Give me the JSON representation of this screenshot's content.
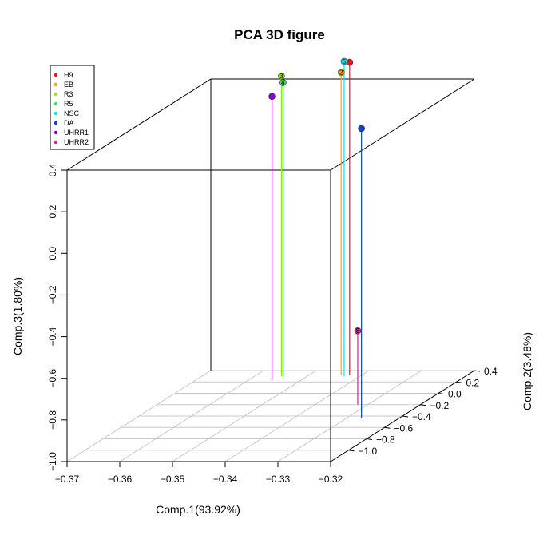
{
  "chart_data": {
    "type": "scatter",
    "title": "PCA 3D figure",
    "xlabel": "Comp.1(93.92%)",
    "ylabel": "Comp.2(3.48%)",
    "zlabel": "Comp.3(1.80%)",
    "xlim": [
      -0.37,
      -0.32
    ],
    "ylim": [
      -1.2,
      0.4
    ],
    "zlim": [
      -1.0,
      0.4
    ],
    "x_ticks": [
      "-0.37",
      "-0.36",
      "-0.35",
      "-0.34",
      "-0.33",
      "-0.32"
    ],
    "y_ticks": [
      "-1.0",
      "-0.8",
      "-0.6",
      "-0.4",
      "-0.2",
      "0.0",
      "0.2",
      "0.4"
    ],
    "z_ticks": [
      "-1.0",
      "-0.8",
      "-0.6",
      "-0.4",
      "-0.2",
      "0.0",
      "0.2",
      "0.4"
    ],
    "box": true,
    "grid": "floor",
    "legend_position": "top-left",
    "series": [
      {
        "name": "H9",
        "color": "#e31a1c",
        "label": "",
        "x": -0.3423,
        "y": 0.32,
        "z": 0.502
      },
      {
        "name": "EB",
        "color": "#ffa500",
        "label": "2",
        "x": -0.3439,
        "y": 0.32,
        "z": 0.454
      },
      {
        "name": "R3",
        "color": "#90ee00",
        "label": "3",
        "x": -0.3549,
        "y": 0.3,
        "z": 0.442
      },
      {
        "name": "R5",
        "color": "#30e060",
        "label": "4",
        "x": -0.3546,
        "y": 0.3,
        "z": 0.41
      },
      {
        "name": "NSC",
        "color": "#00e5ee",
        "label": "5",
        "x": -0.343,
        "y": 0.3,
        "z": 0.512
      },
      {
        "name": "DA",
        "color": "#1040d0",
        "label": "",
        "x": -0.3271,
        "y": -0.44,
        "z": 0.392
      },
      {
        "name": "UHRR1",
        "color": "#8a00d4",
        "label": "",
        "x": -0.3555,
        "y": 0.23,
        "z": 0.363
      },
      {
        "name": "UHRR2",
        "color": "#e01aa0",
        "label": "8",
        "x": -0.3319,
        "y": -0.2,
        "z": -0.645
      }
    ]
  }
}
